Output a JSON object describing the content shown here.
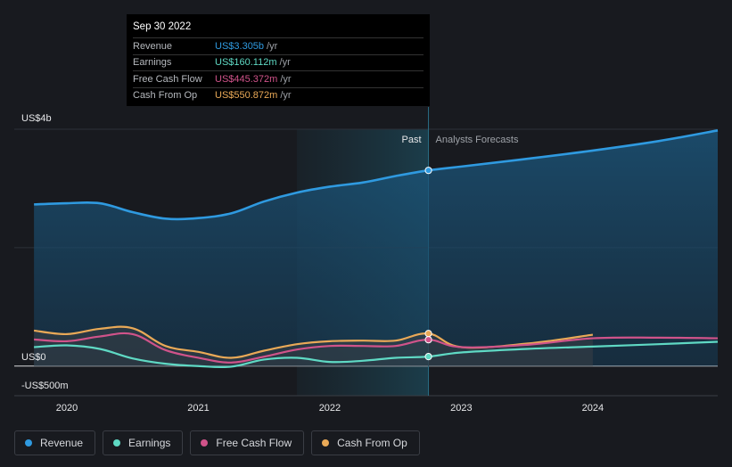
{
  "tooltip": {
    "date": "Sep 30 2022",
    "rows": [
      {
        "label": "Revenue",
        "value": "US$3.305b",
        "unit": "/yr",
        "color": "#2f9ae0"
      },
      {
        "label": "Earnings",
        "value": "US$160.112m",
        "unit": "/yr",
        "color": "#5fd9c4"
      },
      {
        "label": "Free Cash Flow",
        "value": "US$445.372m",
        "unit": "/yr",
        "color": "#d0538a"
      },
      {
        "label": "Cash From Op",
        "value": "US$550.872m",
        "unit": "/yr",
        "color": "#e9a957"
      }
    ]
  },
  "labels": {
    "past": "Past",
    "forecast": "Analysts Forecasts"
  },
  "legend": [
    {
      "label": "Revenue",
      "color": "#2f9ae0"
    },
    {
      "label": "Earnings",
      "color": "#5fd9c4"
    },
    {
      "label": "Free Cash Flow",
      "color": "#d0538a"
    },
    {
      "label": "Cash From Op",
      "color": "#e9a957"
    }
  ],
  "chart_data": {
    "type": "line",
    "title": "",
    "xlabel": "",
    "ylabel": "",
    "ylim": [
      -500,
      4000
    ],
    "xlim": [
      2019.6,
      2024.95
    ],
    "y_tick_labels": [
      {
        "value": 4000,
        "label": "US$4b"
      },
      {
        "value": 0,
        "label": "US$0"
      },
      {
        "value": -500,
        "label": "-US$500m"
      }
    ],
    "x_ticks": [
      2020,
      2021,
      2022,
      2023,
      2024
    ],
    "past_forecast_split": 2022.75,
    "highlight_start": 2021.75,
    "series": [
      {
        "name": "Revenue",
        "color": "#2f9ae0",
        "fill": true,
        "points": [
          [
            2019.75,
            2730
          ],
          [
            2020.0,
            2750
          ],
          [
            2020.25,
            2750
          ],
          [
            2020.5,
            2600
          ],
          [
            2020.75,
            2490
          ],
          [
            2021.0,
            2500
          ],
          [
            2021.25,
            2580
          ],
          [
            2021.5,
            2780
          ],
          [
            2021.75,
            2930
          ],
          [
            2022.0,
            3030
          ],
          [
            2022.25,
            3100
          ],
          [
            2022.5,
            3210
          ],
          [
            2022.75,
            3305
          ],
          [
            2023.0,
            3370
          ],
          [
            2023.5,
            3500
          ],
          [
            2024.0,
            3640
          ],
          [
            2024.5,
            3800
          ],
          [
            2024.95,
            3980
          ]
        ]
      },
      {
        "name": "Earnings",
        "color": "#5fd9c4",
        "fill": false,
        "points": [
          [
            2019.75,
            320
          ],
          [
            2020.0,
            350
          ],
          [
            2020.25,
            290
          ],
          [
            2020.5,
            130
          ],
          [
            2020.75,
            40
          ],
          [
            2021.0,
            0
          ],
          [
            2021.25,
            -10
          ],
          [
            2021.5,
            110
          ],
          [
            2021.75,
            140
          ],
          [
            2022.0,
            70
          ],
          [
            2022.25,
            90
          ],
          [
            2022.5,
            140
          ],
          [
            2022.75,
            160
          ],
          [
            2023.0,
            230
          ],
          [
            2023.5,
            290
          ],
          [
            2024.0,
            330
          ],
          [
            2024.5,
            370
          ],
          [
            2024.95,
            410
          ]
        ]
      },
      {
        "name": "Free Cash Flow",
        "color": "#d0538a",
        "fill": false,
        "points": [
          [
            2019.75,
            450
          ],
          [
            2020.0,
            420
          ],
          [
            2020.25,
            500
          ],
          [
            2020.5,
            540
          ],
          [
            2020.75,
            270
          ],
          [
            2021.0,
            140
          ],
          [
            2021.25,
            60
          ],
          [
            2021.5,
            160
          ],
          [
            2021.75,
            280
          ],
          [
            2022.0,
            340
          ],
          [
            2022.25,
            340
          ],
          [
            2022.5,
            340
          ],
          [
            2022.75,
            445
          ],
          [
            2023.0,
            320
          ],
          [
            2023.5,
            360
          ],
          [
            2024.0,
            470
          ],
          [
            2024.5,
            480
          ],
          [
            2024.95,
            470
          ]
        ]
      },
      {
        "name": "Cash From Op",
        "color": "#e9a957",
        "fill": false,
        "points": [
          [
            2019.75,
            600
          ],
          [
            2020.0,
            540
          ],
          [
            2020.25,
            630
          ],
          [
            2020.5,
            640
          ],
          [
            2020.75,
            340
          ],
          [
            2021.0,
            240
          ],
          [
            2021.25,
            140
          ],
          [
            2021.5,
            260
          ],
          [
            2021.75,
            370
          ],
          [
            2022.0,
            420
          ],
          [
            2022.25,
            430
          ],
          [
            2022.5,
            430
          ],
          [
            2022.75,
            550
          ],
          [
            2023.0,
            320
          ],
          [
            2023.5,
            380
          ],
          [
            2024.0,
            530
          ]
        ]
      }
    ]
  }
}
